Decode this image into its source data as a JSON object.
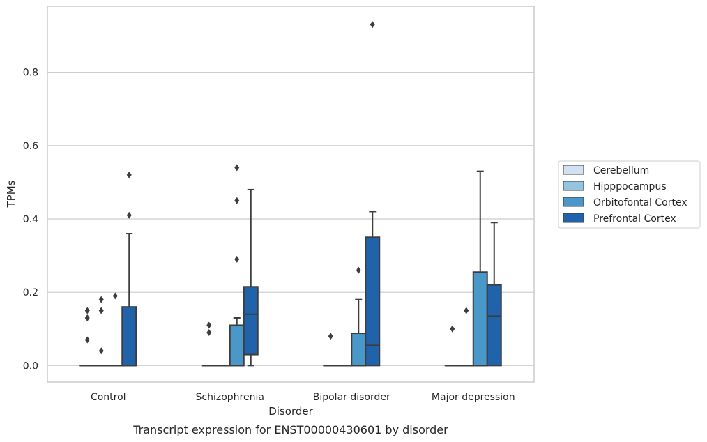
{
  "chart_data": {
    "type": "box",
    "xlabel": "Disorder",
    "ylabel": "TPMs",
    "caption": "Transcript expression for ENST00000430601 by disorder",
    "ylim": [
      -0.045,
      0.98
    ],
    "yticks": [
      0.0,
      0.2,
      0.4,
      0.6,
      0.8
    ],
    "ytick_labels": [
      "0.0",
      "0.2",
      "0.4",
      "0.6",
      "0.8"
    ],
    "grid": "horizontal",
    "legend_position": "right",
    "categories": [
      "Control",
      "Schizophrenia",
      "Bipolar disorder",
      "Major depression"
    ],
    "series": [
      {
        "name": "Cerebellum",
        "color": "#d0e1f2",
        "boxes": [
          {
            "q1": 0,
            "median": 0,
            "q3": 0,
            "whisker_low": 0,
            "whisker_high": 0,
            "outliers": [
              0.07,
              0.13,
              0.15
            ]
          },
          {
            "q1": 0,
            "median": 0,
            "q3": 0,
            "whisker_low": 0,
            "whisker_high": 0,
            "outliers": [
              0.09,
              0.11
            ]
          },
          {
            "q1": 0,
            "median": 0,
            "q3": 0,
            "whisker_low": 0,
            "whisker_high": 0,
            "outliers": [
              0.08
            ]
          },
          {
            "q1": 0,
            "median": 0,
            "q3": 0,
            "whisker_low": 0,
            "whisker_high": 0,
            "outliers": [
              0.1
            ]
          }
        ]
      },
      {
        "name": "Hipppocampus",
        "color": "#94c4df",
        "boxes": [
          {
            "q1": 0,
            "median": 0,
            "q3": 0,
            "whisker_low": 0,
            "whisker_high": 0,
            "outliers": [
              0.04,
              0.15,
              0.18
            ]
          },
          {
            "q1": 0,
            "median": 0,
            "q3": 0,
            "whisker_low": 0,
            "whisker_high": 0,
            "outliers": []
          },
          {
            "q1": 0,
            "median": 0,
            "q3": 0,
            "whisker_low": 0,
            "whisker_high": 0,
            "outliers": []
          },
          {
            "q1": 0,
            "median": 0,
            "q3": 0,
            "whisker_low": 0,
            "whisker_high": 0,
            "outliers": [
              0.15
            ]
          }
        ]
      },
      {
        "name": "Orbitofontal Cortex",
        "color": "#4a98c9",
        "boxes": [
          {
            "q1": 0,
            "median": 0,
            "q3": 0,
            "whisker_low": 0,
            "whisker_high": 0,
            "outliers": [
              0.19
            ]
          },
          {
            "q1": 0,
            "median": 0,
            "q3": 0.11,
            "whisker_low": 0,
            "whisker_high": 0.13,
            "outliers": [
              0.29,
              0.45,
              0.54
            ]
          },
          {
            "q1": 0,
            "median": 0,
            "q3": 0.088,
            "whisker_low": 0,
            "whisker_high": 0.18,
            "outliers": [
              0.26
            ]
          },
          {
            "q1": 0,
            "median": 0,
            "q3": 0.255,
            "whisker_low": 0,
            "whisker_high": 0.53,
            "outliers": []
          }
        ]
      },
      {
        "name": "Prefrontal Cortex",
        "color": "#2163aa",
        "boxes": [
          {
            "q1": 0,
            "median": 0,
            "q3": 0.16,
            "whisker_low": 0,
            "whisker_high": 0.36,
            "outliers": [
              0.41,
              0.52
            ]
          },
          {
            "q1": 0.03,
            "median": 0.14,
            "q3": 0.215,
            "whisker_low": 0,
            "whisker_high": 0.48,
            "outliers": []
          },
          {
            "q1": 0,
            "median": 0.055,
            "q3": 0.35,
            "whisker_low": 0,
            "whisker_high": 0.42,
            "outliers": [
              0.93
            ]
          },
          {
            "q1": 0,
            "median": 0.135,
            "q3": 0.22,
            "whisker_low": 0,
            "whisker_high": 0.39,
            "outliers": []
          }
        ]
      }
    ]
  }
}
